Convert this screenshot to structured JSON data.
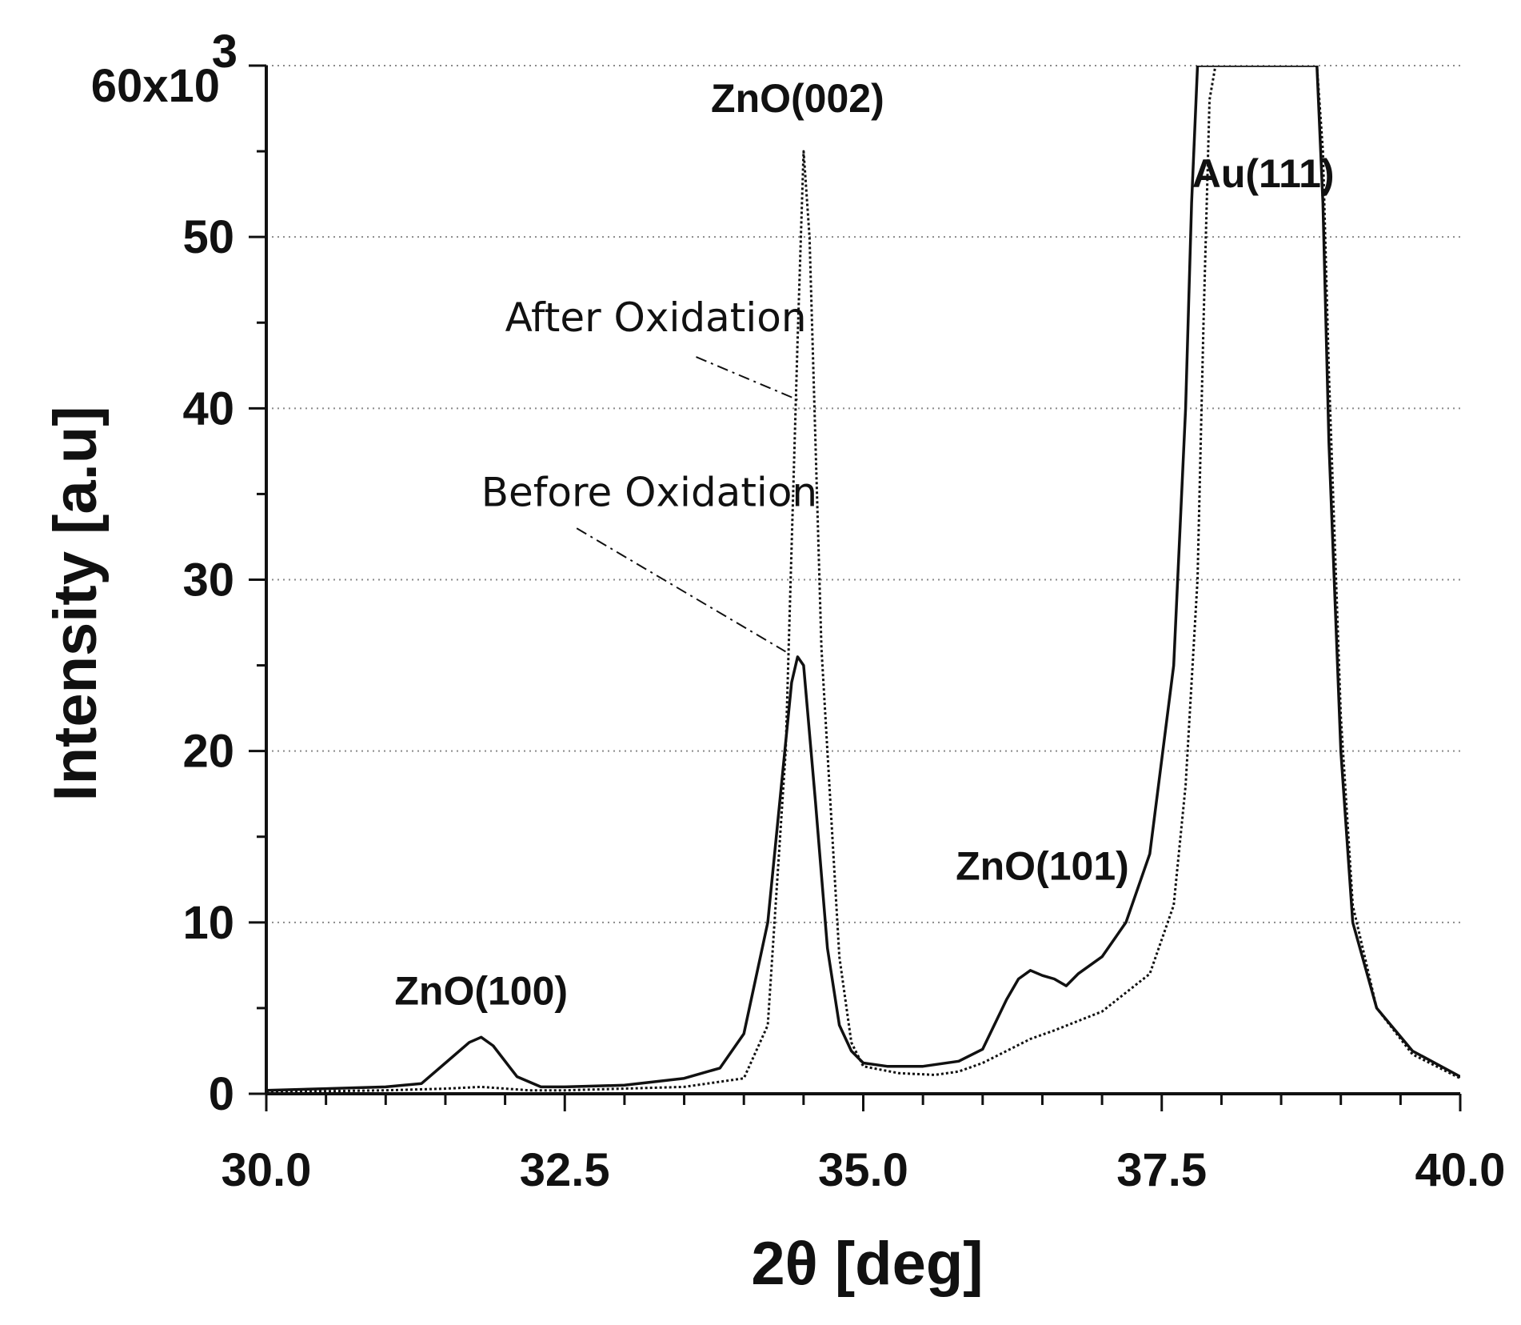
{
  "chart_data": {
    "type": "line",
    "title": "",
    "xlabel": "2θ [deg]",
    "ylabel": "Intensity [a.u]",
    "xlim": [
      30.0,
      40.0
    ],
    "ylim": [
      0,
      60000
    ],
    "x_ticks": [
      30.0,
      32.5,
      35.0,
      37.5,
      40.0
    ],
    "x_tick_labels": [
      "30.0",
      "32.5",
      "35.0",
      "37.5",
      "40.0"
    ],
    "x_minor_step": 0.5,
    "y_ticks": [
      0,
      10000,
      20000,
      30000,
      40000,
      50000,
      60000
    ],
    "y_tick_labels": [
      "0",
      "10",
      "20",
      "30",
      "40",
      "50",
      "60x10"
    ],
    "y_tick_exponent": "3",
    "y_minor_step": 5000,
    "grid": "horizontal dotted",
    "series": [
      {
        "name": "Before Oxidation",
        "style": "solid",
        "x": [
          30.0,
          30.5,
          31.0,
          31.3,
          31.5,
          31.7,
          31.8,
          31.9,
          32.1,
          32.3,
          32.5,
          33.0,
          33.5,
          33.8,
          34.0,
          34.2,
          34.3,
          34.4,
          34.45,
          34.5,
          34.6,
          34.7,
          34.8,
          34.9,
          35.0,
          35.2,
          35.5,
          35.8,
          36.0,
          36.2,
          36.3,
          36.4,
          36.5,
          36.6,
          36.7,
          36.8,
          37.0,
          37.2,
          37.4,
          37.6,
          37.7,
          37.75,
          37.8,
          37.85,
          38.8,
          38.85,
          38.9,
          39.0,
          39.1,
          39.3,
          39.6,
          40.0
        ],
        "y": [
          200,
          300,
          400,
          600,
          1800,
          3000,
          3300,
          2800,
          1000,
          400,
          400,
          500,
          900,
          1500,
          3500,
          10000,
          17000,
          24000,
          25500,
          25000,
          17000,
          8500,
          4000,
          2500,
          1800,
          1600,
          1600,
          1900,
          2600,
          5500,
          6700,
          7200,
          6900,
          6700,
          6300,
          7000,
          8000,
          10000,
          14000,
          25000,
          40000,
          52000,
          60000,
          60000,
          60000,
          52000,
          38000,
          20000,
          10000,
          5000,
          2500,
          1000
        ]
      },
      {
        "name": "After Oxidation",
        "style": "dotted",
        "x": [
          30.0,
          31.0,
          31.5,
          31.8,
          32.2,
          32.5,
          33.5,
          34.0,
          34.2,
          34.35,
          34.45,
          34.5,
          34.55,
          34.65,
          34.8,
          34.9,
          35.0,
          35.3,
          35.6,
          35.8,
          36.0,
          36.2,
          36.4,
          36.6,
          37.0,
          37.4,
          37.6,
          37.7,
          37.8,
          37.85,
          37.9,
          37.95,
          38.8,
          38.85,
          38.9,
          39.0,
          39.1,
          39.3,
          39.6,
          40.0
        ],
        "y": [
          100,
          200,
          300,
          400,
          200,
          200,
          400,
          900,
          4000,
          20000,
          44000,
          55000,
          50000,
          26000,
          8000,
          3000,
          1600,
          1200,
          1100,
          1300,
          1800,
          2500,
          3200,
          3700,
          4800,
          7000,
          11000,
          18000,
          30000,
          45000,
          58000,
          60000,
          60000,
          55000,
          42000,
          22000,
          11000,
          5000,
          2300,
          900
        ]
      }
    ],
    "annotations": [
      {
        "text": "ZnO(100)",
        "x": 31.8,
        "y": 5200
      },
      {
        "text": "ZnO(002)",
        "x": 34.45,
        "y": 57300
      },
      {
        "text": "ZnO(101)",
        "x": 36.5,
        "y": 12500
      },
      {
        "text": "Au(111)",
        "x": 38.35,
        "y": 52900
      }
    ],
    "callouts": [
      {
        "text": "After Oxidation",
        "text_x": 32.0,
        "text_y": 44500,
        "arrow_from_x": 33.6,
        "arrow_from_y": 43000,
        "arrow_to_x": 34.45,
        "arrow_to_y": 40500
      },
      {
        "text": "Before Oxidation",
        "text_x": 31.8,
        "text_y": 34300,
        "arrow_from_x": 32.6,
        "arrow_from_y": 33000,
        "arrow_to_x": 34.35,
        "arrow_to_y": 25800
      }
    ]
  }
}
